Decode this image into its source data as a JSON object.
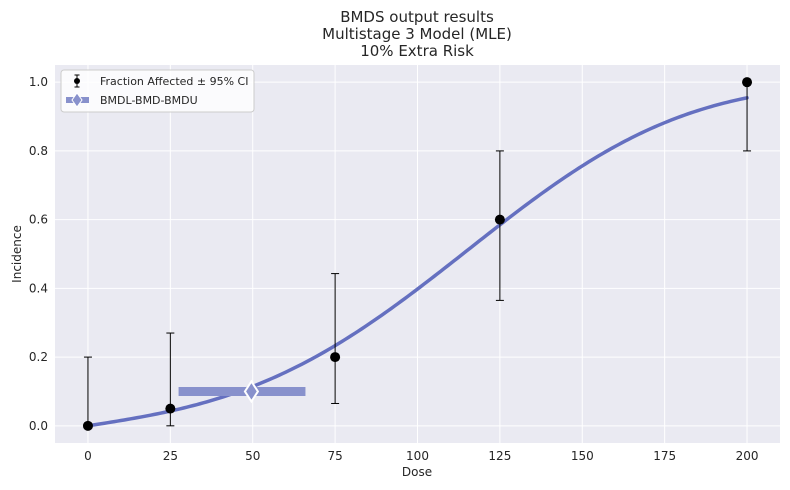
{
  "chart_data": {
    "type": "scatter",
    "title": [
      "BMDS output results",
      "Multistage 3 Model (MLE)",
      "10% Extra Risk"
    ],
    "xlabel": "Dose",
    "ylabel": "Incidence",
    "xlim": [
      -10,
      210
    ],
    "ylim": [
      -0.05,
      1.05
    ],
    "xticks": [
      0,
      25,
      50,
      75,
      100,
      125,
      150,
      175,
      200
    ],
    "yticks": [
      0.0,
      0.2,
      0.4,
      0.6,
      0.8,
      1.0
    ],
    "grid": true,
    "legend_position": "top-left",
    "series": [
      {
        "name": "Fraction Affected ± 95% CI",
        "kind": "points-with-errorbars",
        "color": "#000000",
        "points": [
          {
            "x": 0,
            "y": 0.0,
            "lo": 0.0,
            "hi": 0.2
          },
          {
            "x": 25,
            "y": 0.05,
            "lo": 0.0,
            "hi": 0.27
          },
          {
            "x": 75,
            "y": 0.2,
            "lo": 0.065,
            "hi": 0.443
          },
          {
            "x": 125,
            "y": 0.6,
            "lo": 0.365,
            "hi": 0.8
          },
          {
            "x": 200,
            "y": 1.0,
            "lo": 0.8,
            "hi": 1.0
          }
        ]
      },
      {
        "name": "BMDL-BMD-BMDU",
        "kind": "interval",
        "color": "#8891cc",
        "bmdl": 27.5,
        "bmd": 49.6,
        "bmdu": 66,
        "y": 0.1
      },
      {
        "kind": "fitted-curve",
        "color": "#6570c0",
        "model": "multistage3",
        "coefficients": {
          "b1": 0.0015,
          "b2": 1.75e-06,
          "b3": 3.4e-07
        }
      }
    ]
  }
}
